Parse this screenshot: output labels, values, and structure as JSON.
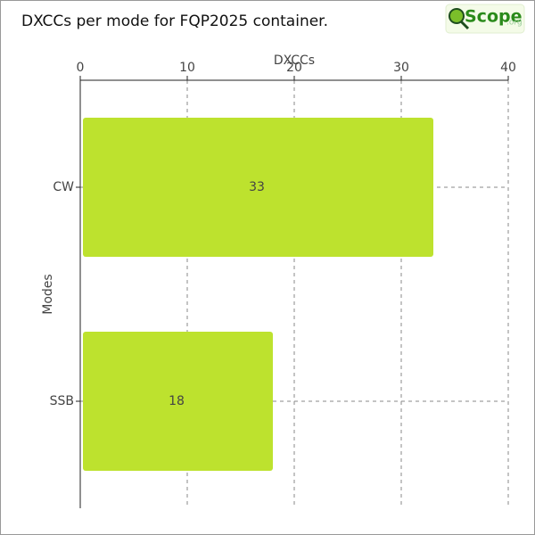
{
  "logo": {
    "text": "Scope",
    "suffix": ".org"
  },
  "chart_data": {
    "type": "bar",
    "orientation": "horizontal",
    "title": "DXCCs per mode for FQP2025 container.",
    "x_label": "DXCCs",
    "y_label": "Modes",
    "categories": [
      "CW",
      "SSB"
    ],
    "values": [
      33,
      18
    ],
    "color": "#bde22e",
    "xlim": [
      0,
      40
    ],
    "xticks": [
      0,
      10,
      20,
      30,
      40
    ],
    "grid": true
  }
}
